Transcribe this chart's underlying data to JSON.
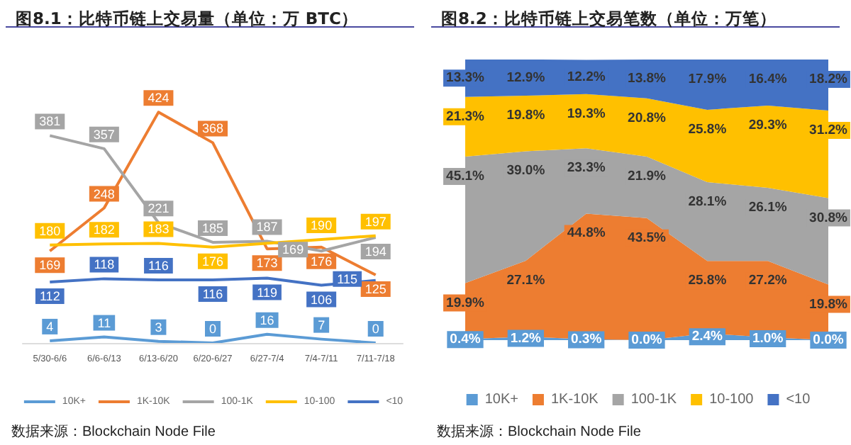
{
  "chart_data": [
    {
      "type": "line",
      "title": "图8.1：比特币链上交易量（单位：万 BTC）",
      "categories": [
        "5/30-6/6",
        "6/6-6/13",
        "6/13-6/20",
        "6/20-6/27",
        "6/27-7/4",
        "7/4-7/11",
        "7/11-7/18"
      ],
      "series": [
        {
          "name": "10K+",
          "color": "#5b9bd5",
          "values": [
            4,
            11,
            3,
            0,
            16,
            7,
            0
          ]
        },
        {
          "name": "1K-10K",
          "color": "#ed7d31",
          "values": [
            169,
            248,
            424,
            368,
            173,
            176,
            125
          ]
        },
        {
          "name": "100-1K",
          "color": "#a5a5a5",
          "values": [
            381,
            357,
            221,
            185,
            187,
            169,
            194
          ]
        },
        {
          "name": "10-100",
          "color": "#ffc000",
          "values": [
            180,
            182,
            183,
            176,
            null,
            190,
            197
          ]
        },
        {
          "name": "<10",
          "color": "#4472c4",
          "values": [
            112,
            118,
            116,
            116,
            119,
            106,
            115
          ]
        }
      ],
      "data_labels": true,
      "legend": "bottom",
      "tick_labels": "x",
      "marker": "none",
      "grid": false,
      "annotations": [
        "数据来源：Blockchain Node File"
      ]
    },
    {
      "type": "area",
      "title": "图8.2：比特币链上交易笔数（单位：万笔）",
      "categories": [
        null,
        null,
        null,
        null,
        null,
        null,
        null
      ],
      "stacked": true,
      "series": [
        {
          "name": "10K+",
          "color": "#5b9bd5",
          "values": [
            0.4,
            1.2,
            0.3,
            0.0,
            2.4,
            1.0,
            0.0
          ],
          "value_labels": [
            "0.4%",
            "1.2%",
            "0.3%",
            "0.0%",
            "2.4%",
            "1.0%",
            "0.0%"
          ]
        },
        {
          "name": "1K-10K",
          "color": "#ed7d31",
          "values": [
            19.9,
            27.1,
            44.8,
            43.5,
            25.8,
            27.2,
            19.8
          ],
          "value_labels": [
            "19.9%",
            "27.1%",
            "44.8%",
            "43.5%",
            "25.8%",
            "27.2%",
            "19.8%"
          ]
        },
        {
          "name": "100-1K",
          "color": "#a5a5a5",
          "values": [
            45.1,
            39.0,
            23.3,
            21.9,
            28.1,
            26.1,
            30.8
          ],
          "value_labels": [
            "45.1%",
            "39.0%",
            "23.3%",
            "21.9%",
            "28.1%",
            "26.1%",
            "30.8%"
          ]
        },
        {
          "name": "10-100",
          "color": "#ffc000",
          "values": [
            21.3,
            19.8,
            19.3,
            20.8,
            25.8,
            29.3,
            31.2
          ],
          "value_labels": [
            "21.3%",
            "19.8%",
            "19.3%",
            "20.8%",
            "25.8%",
            "29.3%",
            "31.2%"
          ]
        },
        {
          "name": "<10",
          "color": "#4472c4",
          "values": [
            13.3,
            12.9,
            12.2,
            13.8,
            17.9,
            16.4,
            18.2
          ],
          "value_labels": [
            "13.3%",
            "12.9%",
            "12.2%",
            "13.8%",
            "17.9%",
            "16.4%",
            "18.2%"
          ]
        }
      ],
      "legend": "bottom",
      "tick_labels": "x",
      "annotations": [
        "数据来源：Blockchain Node File"
      ]
    }
  ]
}
